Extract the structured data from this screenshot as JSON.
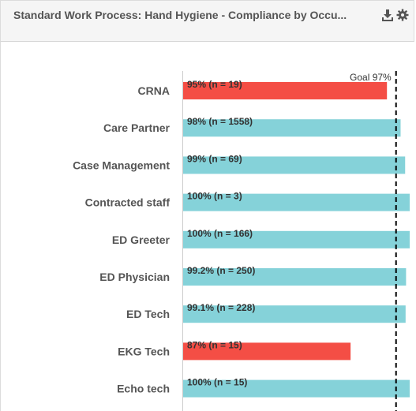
{
  "header": {
    "title": "Standard Work Process: Hand Hygiene - Compliance by Occu...",
    "download_icon": "download-icon",
    "settings_icon": "gear-icon"
  },
  "colors": {
    "below_goal": "#f44e45",
    "at_goal": "#85d2d9",
    "goal_line": "#000000"
  },
  "chart_data": {
    "type": "bar",
    "orientation": "horizontal",
    "categories": [
      "CRNA",
      "Care Partner",
      "Case Management",
      "Contracted staff",
      "ED Greeter",
      "ED Physician",
      "ED Tech",
      "EKG Tech",
      "Echo tech"
    ],
    "values": [
      95,
      98,
      99,
      100,
      100,
      99.2,
      99.1,
      87,
      100
    ],
    "labels": [
      "95% (n = 19)",
      "98% (n = 1558)",
      "99% (n = 69)",
      "100% (n = 3)",
      "100% (n = 166)",
      "99.2% (n = 250)",
      "99.1% (n = 228)",
      "87% (n = 15)",
      "100% (n = 15)"
    ],
    "below_goal": [
      true,
      false,
      false,
      false,
      false,
      false,
      false,
      true,
      false
    ],
    "goal": 97,
    "goal_label": "Goal 97%",
    "xlim": [
      50,
      100
    ],
    "title": "",
    "xlabel": "",
    "ylabel": ""
  }
}
